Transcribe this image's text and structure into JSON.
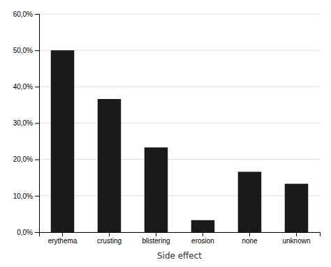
{
  "chart_data": {
    "type": "bar",
    "xlabel": "Side effect",
    "categories": [
      "erythema",
      "crusting",
      "blistering",
      "erosion",
      "none",
      "unknown"
    ],
    "values": [
      0.5,
      0.366,
      0.233,
      0.033,
      0.166,
      0.133
    ],
    "color": "#1a1a1a",
    "ylim": [
      0,
      0.6
    ],
    "yticks": [
      {
        "value": 0.0,
        "label": "0,0%"
      },
      {
        "value": 0.1,
        "label": "10,0%"
      },
      {
        "value": 0.2,
        "label": "20,0%"
      },
      {
        "value": 0.3,
        "label": "30,0%"
      },
      {
        "value": 0.4,
        "label": "40,0%"
      },
      {
        "value": 0.5,
        "label": "50,0%"
      },
      {
        "value": 0.6,
        "label": "60,0%"
      }
    ],
    "grid": true
  }
}
